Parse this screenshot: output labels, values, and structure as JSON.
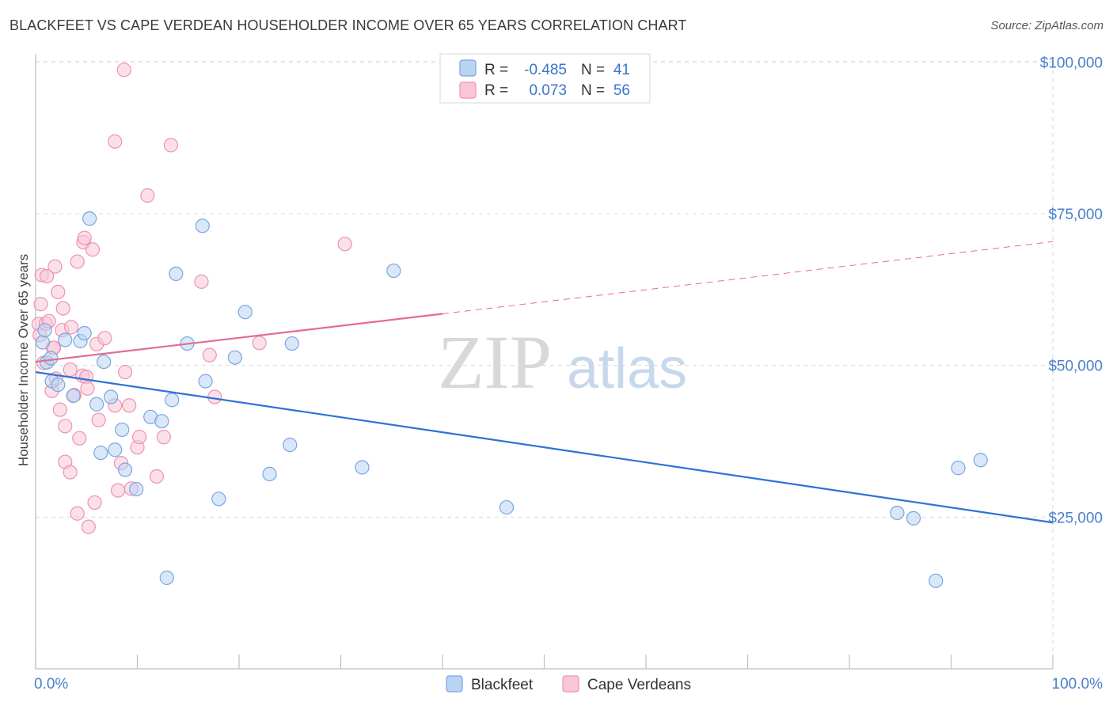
{
  "title": "BLACKFEET VS CAPE VERDEAN HOUSEHOLDER INCOME OVER 65 YEARS CORRELATION CHART",
  "source": "Source: ZipAtlas.com",
  "watermark": {
    "zip": "ZIP",
    "atlas": "atlas"
  },
  "colors": {
    "blue_fill": "#b9d3f2",
    "blue_stroke": "#7aa7e0",
    "blue_line": "#2f72d6",
    "pink_fill": "#f9c6d6",
    "pink_stroke": "#ec93b1",
    "pink_line": "#e56b94",
    "grid": "#d9d9d9",
    "tick_text": "#4a7fcc"
  },
  "legend": {
    "rows": [
      {
        "r_label": "R = ",
        "r_value": "-0.485",
        "n_label": "N = ",
        "n_value": "41"
      },
      {
        "r_label": "R = ",
        "r_value": "0.073",
        "n_label": "N = ",
        "n_value": "56"
      }
    ]
  },
  "chart_data": {
    "type": "scatter",
    "title": "BLACKFEET VS CAPE VERDEAN HOUSEHOLDER INCOME OVER 65 YEARS CORRELATION CHART",
    "xlabel": "",
    "ylabel": "Householder Income Over 65 years",
    "xlim": [
      0,
      100
    ],
    "ylim": [
      0,
      105000
    ],
    "x_tick_labels": [
      "0.0%",
      "100.0%"
    ],
    "y_ticks": [
      25000,
      50000,
      75000,
      100000
    ],
    "y_tick_labels": [
      "$25,000",
      "$50,000",
      "$75,000",
      "$100,000"
    ],
    "grid": true,
    "legend_position": "top-center",
    "series": [
      {
        "name": "Blackfeet",
        "color": "#7aa7e0",
        "points": [
          [
            0.7,
            53800
          ],
          [
            0.9,
            55800
          ],
          [
            1.1,
            50500
          ],
          [
            1.6,
            47400
          ],
          [
            2.2,
            46800
          ],
          [
            2.9,
            54200
          ],
          [
            3.7,
            45000
          ],
          [
            4.4,
            54000
          ],
          [
            4.8,
            55300
          ],
          [
            5.3,
            74200
          ],
          [
            6.0,
            43600
          ],
          [
            6.4,
            35600
          ],
          [
            6.7,
            50600
          ],
          [
            7.4,
            44800
          ],
          [
            7.8,
            36100
          ],
          [
            8.5,
            39400
          ],
          [
            8.8,
            32800
          ],
          [
            9.9,
            29600
          ],
          [
            11.3,
            41500
          ],
          [
            12.4,
            40800
          ],
          [
            12.9,
            15000
          ],
          [
            13.4,
            44300
          ],
          [
            13.8,
            65100
          ],
          [
            14.9,
            53600
          ],
          [
            16.4,
            73000
          ],
          [
            16.7,
            47400
          ],
          [
            18.0,
            28000
          ],
          [
            19.6,
            51300
          ],
          [
            20.6,
            58800
          ],
          [
            23.0,
            32100
          ],
          [
            25.0,
            36900
          ],
          [
            25.2,
            53600
          ],
          [
            32.1,
            33200
          ],
          [
            35.2,
            65600
          ],
          [
            46.3,
            26600
          ],
          [
            84.7,
            25700
          ],
          [
            86.3,
            24800
          ],
          [
            88.5,
            14500
          ],
          [
            90.7,
            33100
          ],
          [
            92.9,
            34400
          ],
          [
            1.5,
            51200
          ]
        ]
      },
      {
        "name": "Cape Verdeans",
        "color": "#ec93b1",
        "points": [
          [
            0.3,
            56800
          ],
          [
            0.4,
            55000
          ],
          [
            0.5,
            60100
          ],
          [
            0.6,
            64900
          ],
          [
            0.8,
            50400
          ],
          [
            1.0,
            56900
          ],
          [
            1.1,
            64700
          ],
          [
            1.3,
            57300
          ],
          [
            1.6,
            45800
          ],
          [
            1.7,
            52900
          ],
          [
            1.9,
            66300
          ],
          [
            2.0,
            47800
          ],
          [
            2.2,
            62100
          ],
          [
            2.4,
            42700
          ],
          [
            2.6,
            55800
          ],
          [
            2.7,
            59400
          ],
          [
            2.9,
            40000
          ],
          [
            2.9,
            34100
          ],
          [
            3.4,
            49300
          ],
          [
            3.4,
            32400
          ],
          [
            3.5,
            56300
          ],
          [
            3.8,
            45100
          ],
          [
            4.1,
            67100
          ],
          [
            4.1,
            25600
          ],
          [
            4.3,
            38000
          ],
          [
            4.6,
            48300
          ],
          [
            4.7,
            70300
          ],
          [
            4.8,
            71000
          ],
          [
            5.0,
            48100
          ],
          [
            5.1,
            46200
          ],
          [
            5.2,
            23400
          ],
          [
            5.6,
            69100
          ],
          [
            5.8,
            27400
          ],
          [
            6.0,
            53500
          ],
          [
            6.2,
            41000
          ],
          [
            6.8,
            54500
          ],
          [
            7.8,
            43400
          ],
          [
            7.8,
            86900
          ],
          [
            8.1,
            29400
          ],
          [
            8.4,
            33900
          ],
          [
            8.7,
            98700
          ],
          [
            8.8,
            48900
          ],
          [
            9.2,
            43400
          ],
          [
            9.4,
            29700
          ],
          [
            10.0,
            36500
          ],
          [
            10.2,
            38200
          ],
          [
            11.0,
            78000
          ],
          [
            11.9,
            31700
          ],
          [
            12.6,
            38200
          ],
          [
            13.3,
            86300
          ],
          [
            16.3,
            63800
          ],
          [
            17.1,
            51700
          ],
          [
            17.6,
            44800
          ],
          [
            22.0,
            53700
          ],
          [
            30.4,
            70000
          ],
          [
            1.8,
            52900
          ]
        ]
      }
    ],
    "trend_lines": [
      {
        "series": "Blackfeet",
        "x": [
          0,
          100
        ],
        "y": [
          48900,
          24100
        ],
        "style": "solid"
      },
      {
        "series": "Cape Verdeans",
        "x": [
          0,
          40
        ],
        "y": [
          50600,
          58500
        ],
        "style": "solid"
      },
      {
        "series": "Cape Verdeans",
        "x": [
          40,
          100
        ],
        "y": [
          58500,
          70400
        ],
        "style": "dashed"
      }
    ]
  },
  "bottom_legend": [
    {
      "label": "Blackfeet"
    },
    {
      "label": "Cape Verdeans"
    }
  ]
}
